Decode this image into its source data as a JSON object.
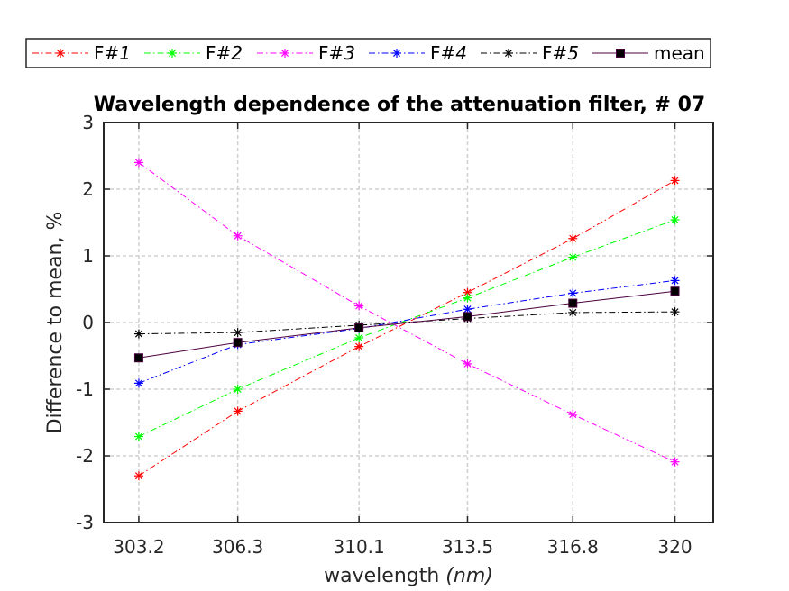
{
  "chart_data": {
    "type": "line",
    "title": "Wavelength dependence of the attenuation filter,  # 07",
    "xlabel": "wavelength",
    "xlabel_unit": "(nm)",
    "ylabel": "Difference to mean,  %",
    "x": [
      303.2,
      306.3,
      310.1,
      313.5,
      316.8,
      320
    ],
    "x_tick_labels": [
      "303.2",
      "306.3",
      "310.1",
      "313.5",
      "316.8",
      "320"
    ],
    "xlim": [
      302.1,
      321.2
    ],
    "ylim": [
      -3,
      3
    ],
    "y_ticks": [
      3,
      2,
      1,
      0,
      -1,
      -2,
      -3
    ],
    "y_tick_labels": [
      "3",
      "2",
      "1",
      "0",
      "-1",
      "-2",
      "-3"
    ],
    "grid": true,
    "legend_placement": "top, outside, horizontal",
    "series": [
      {
        "name": "F#1",
        "legend_prefix": "F",
        "legend_suffix": "#1",
        "color": "#ff0000",
        "line": "dashdot",
        "marker": "asterisk",
        "values": [
          -2.3,
          -1.33,
          -0.36,
          0.45,
          1.26,
          2.13
        ]
      },
      {
        "name": "F#2",
        "legend_prefix": "F",
        "legend_suffix": "#2",
        "color": "#00ff00",
        "line": "dashdot",
        "marker": "asterisk",
        "values": [
          -1.71,
          -1.0,
          -0.23,
          0.37,
          0.98,
          1.54
        ]
      },
      {
        "name": "F#3",
        "legend_prefix": "F",
        "legend_suffix": "#3",
        "color": "#ff00ff",
        "line": "dashdot",
        "marker": "asterisk",
        "values": [
          2.4,
          1.3,
          0.25,
          -0.62,
          -1.38,
          -2.09
        ]
      },
      {
        "name": "F#4",
        "legend_prefix": "F",
        "legend_suffix": "#4",
        "color": "#0000ff",
        "line": "dashdot",
        "marker": "asterisk",
        "values": [
          -0.91,
          -0.33,
          -0.09,
          0.2,
          0.44,
          0.63
        ]
      },
      {
        "name": "F#5",
        "legend_prefix": "F",
        "legend_suffix": "#5",
        "color": "#000000",
        "line": "dashdot",
        "marker": "asterisk",
        "values": [
          -0.17,
          -0.15,
          -0.04,
          0.06,
          0.15,
          0.16
        ]
      },
      {
        "name": "mean",
        "legend_prefix": "mean",
        "legend_suffix": "",
        "color": "#4b0040",
        "line": "solid",
        "marker": "square",
        "values": [
          -0.53,
          -0.3,
          -0.08,
          0.09,
          0.29,
          0.47
        ]
      }
    ]
  }
}
